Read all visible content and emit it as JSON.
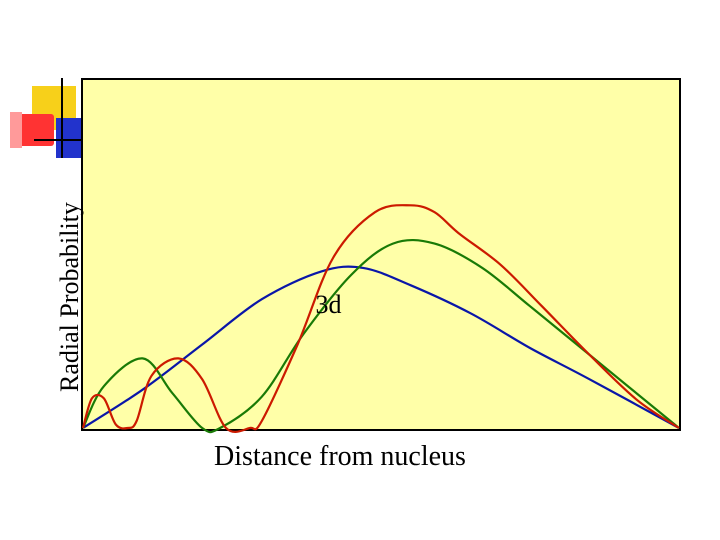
{
  "slide": {
    "decoration": {
      "name": "corner-block-decoration",
      "colors": {
        "yellow": "#f7d01a",
        "red": "#ff3333",
        "blue": "#2233cc",
        "pink": "#ff9a9a",
        "line": "#000000"
      }
    }
  },
  "chart_data": {
    "type": "line",
    "title": "",
    "xlabel": "Distance from nucleus",
    "ylabel": "Radial Probability",
    "xlim": [
      0,
      1
    ],
    "ylim": [
      0,
      1
    ],
    "grid": false,
    "legend": "none",
    "plot_background": "#ffffa8",
    "annotation": {
      "text": "3d",
      "x": 0.39,
      "y": 0.33
    },
    "series": [
      {
        "color": "#0a16a8",
        "x": [
          0,
          0.1,
          0.2,
          0.3,
          0.4,
          0.47,
          0.55,
          0.65,
          0.75,
          0.85,
          1.0
        ],
        "y": [
          0,
          0.11,
          0.24,
          0.37,
          0.45,
          0.46,
          0.41,
          0.33,
          0.23,
          0.14,
          0
        ]
      },
      {
        "color": "#197a06",
        "x": [
          0,
          0.035,
          0.1,
          0.15,
          0.2,
          0.23,
          0.3,
          0.37,
          0.45,
          0.52,
          0.59,
          0.67,
          0.75,
          0.85,
          1.0
        ],
        "y": [
          0,
          0.12,
          0.2,
          0.1,
          0,
          0,
          0.09,
          0.27,
          0.44,
          0.53,
          0.53,
          0.46,
          0.35,
          0.21,
          0
        ]
      },
      {
        "color": "#cc1a00",
        "x": [
          0,
          0.015,
          0.035,
          0.055,
          0.075,
          0.09,
          0.115,
          0.16,
          0.2,
          0.24,
          0.28,
          0.3,
          0.36,
          0.42,
          0.49,
          0.55,
          0.59,
          0.63,
          0.7,
          0.77,
          0.85,
          0.93,
          1.0
        ],
        "y": [
          0,
          0.085,
          0.085,
          0.01,
          0,
          0.02,
          0.15,
          0.2,
          0.14,
          0,
          0,
          0.02,
          0.24,
          0.49,
          0.62,
          0.64,
          0.62,
          0.56,
          0.47,
          0.35,
          0.21,
          0.08,
          0
        ]
      }
    ]
  }
}
